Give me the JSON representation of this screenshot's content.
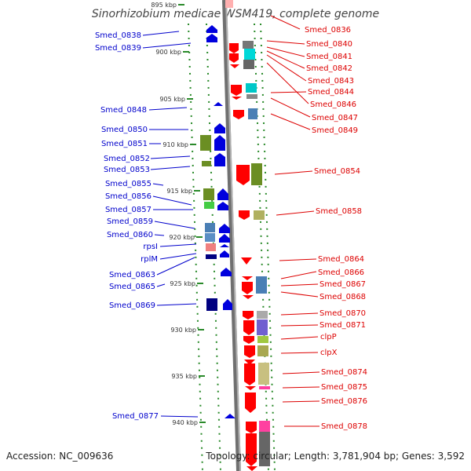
{
  "title": "Sinorhizobium medicae WSM419, complete genome",
  "footer": {
    "accession": "Accession: NC_009636",
    "topology": "Topology: circular; Length: 3,781,904 bp; Genes: 3,592"
  },
  "colors": {
    "minus_strand": "#0000dd",
    "plus_strand": "#ff0000",
    "backbone": "#808080",
    "dots": "#2a8a2a"
  },
  "ticks": [
    "895 kbp",
    "900 kbp",
    "905 kbp",
    "910 kbp",
    "915 kbp",
    "920 kbp",
    "925 kbp",
    "930 kbp",
    "935 kbp",
    "940 kbp"
  ],
  "left_genes": [
    "Smed_0838",
    "Smed_0839",
    "Smed_0848",
    "Smed_0850",
    "Smed_0851",
    "Smed_0852",
    "Smed_0853",
    "Smed_0855",
    "Smed_0856",
    "Smed_0857",
    "Smed_0859",
    "Smed_0860",
    "rpsI",
    "rplM",
    "Smed_0863",
    "Smed_0865",
    "Smed_0869",
    "Smed_0877"
  ],
  "right_genes": [
    "Smed_0836",
    "Smed_0840",
    "Smed_0841",
    "Smed_0842",
    "Smed_0843",
    "Smed_0844",
    "Smed_0846",
    "Smed_0847",
    "Smed_0849",
    "Smed_0854",
    "Smed_0858",
    "Smed_0864",
    "Smed_0866",
    "Smed_0867",
    "Smed_0868",
    "Smed_0870",
    "Smed_0871",
    "clpP",
    "clpX",
    "Smed_0874",
    "Smed_0875",
    "Smed_0876",
    "Smed_0878"
  ]
}
